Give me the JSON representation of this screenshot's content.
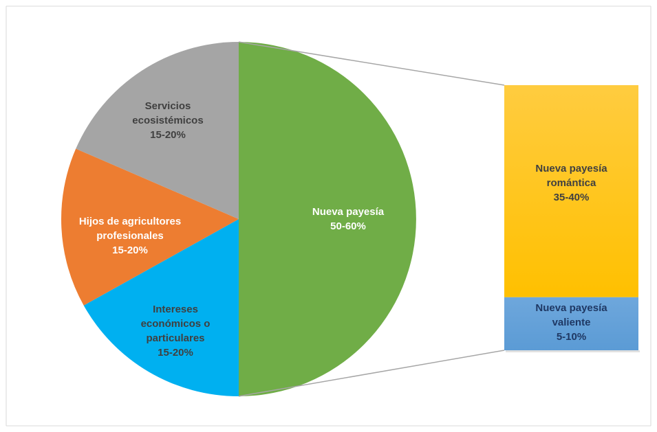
{
  "chart_data": {
    "type": "pie",
    "subtype": "pie-of-bar",
    "title": "",
    "slices": [
      {
        "key": "nueva",
        "lines": [
          "Nueva payesía",
          "50-60%"
        ],
        "value": 50,
        "color": "#70ad47",
        "color_light": "#86bf5e"
      },
      {
        "key": "intereses",
        "lines": [
          "Intereses",
          "económicos o",
          "particulares",
          "15-20%"
        ],
        "value": 16.9,
        "color": "#00b0f0",
        "color_light": "#10b8f4"
      },
      {
        "key": "hijos",
        "lines": [
          "Hijos de agricultores",
          "profesionales",
          "15-20%"
        ],
        "value": 14.6,
        "color": "#ed7d31",
        "color_light": "#f08c4b"
      },
      {
        "key": "servicios",
        "lines": [
          "Servicios",
          "ecosistémicos",
          "15-20%"
        ],
        "value": 18.5,
        "color": "#a5a5a5",
        "color_light": "#b4b4b4"
      }
    ],
    "breakdown_of": "nueva",
    "bar_segments": [
      {
        "key": "romantica",
        "lines": [
          "Nueva payesía",
          "romántica",
          "35-40%"
        ],
        "value": 80,
        "color": "#ffc000",
        "color_light": "#ffcc40"
      },
      {
        "key": "valiente",
        "lines": [
          "Nueva payesía",
          "valiente",
          "5-10%"
        ],
        "value": 20,
        "color": "#5b9bd5",
        "color_light": "#6ea7dc"
      }
    ],
    "legend": "none"
  }
}
